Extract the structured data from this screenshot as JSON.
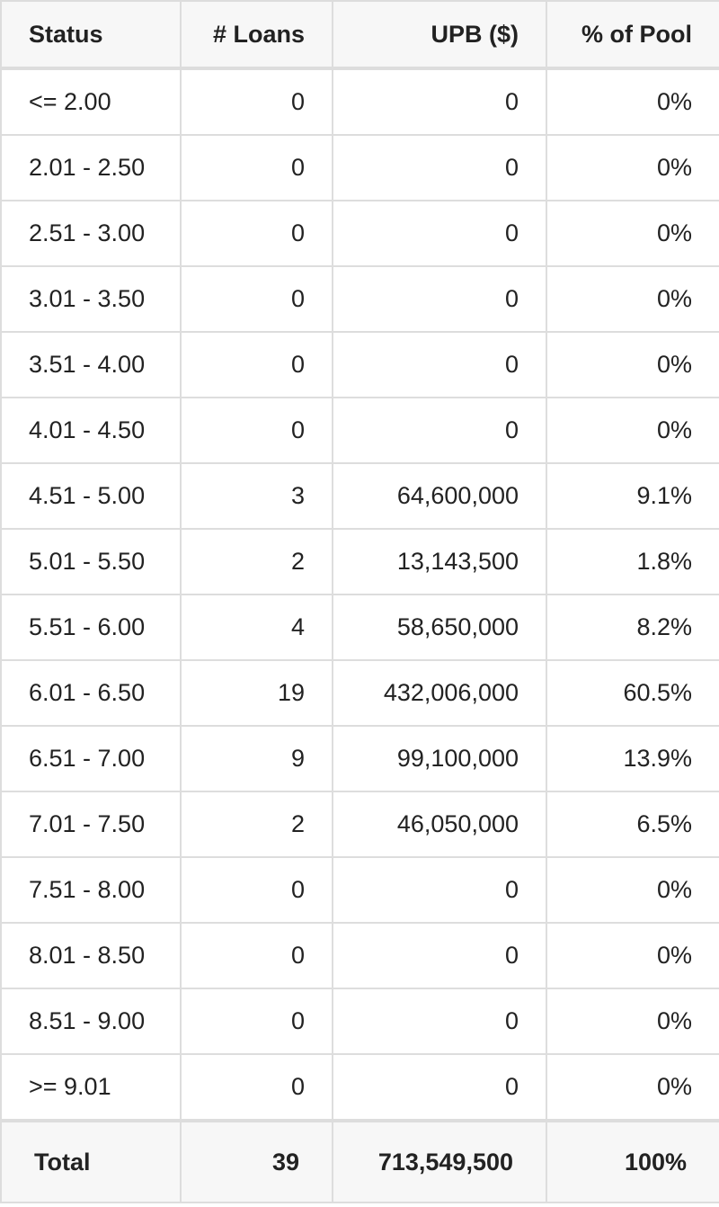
{
  "table": {
    "headers": [
      "Status",
      "# Loans",
      "UPB ($)",
      "% of Pool"
    ],
    "rows": [
      [
        "<= 2.00",
        "0",
        "0",
        "0%"
      ],
      [
        "2.01 - 2.50",
        "0",
        "0",
        "0%"
      ],
      [
        "2.51 - 3.00",
        "0",
        "0",
        "0%"
      ],
      [
        "3.01 - 3.50",
        "0",
        "0",
        "0%"
      ],
      [
        "3.51 - 4.00",
        "0",
        "0",
        "0%"
      ],
      [
        "4.01 - 4.50",
        "0",
        "0",
        "0%"
      ],
      [
        "4.51 - 5.00",
        "3",
        "64,600,000",
        "9.1%"
      ],
      [
        "5.01 - 5.50",
        "2",
        "13,143,500",
        "1.8%"
      ],
      [
        "5.51 - 6.00",
        "4",
        "58,650,000",
        "8.2%"
      ],
      [
        "6.01 - 6.50",
        "19",
        "432,006,000",
        "60.5%"
      ],
      [
        "6.51 - 7.00",
        "9",
        "99,100,000",
        "13.9%"
      ],
      [
        "7.01 - 7.50",
        "2",
        "46,050,000",
        "6.5%"
      ],
      [
        "7.51 - 8.00",
        "0",
        "0",
        "0%"
      ],
      [
        "8.01 - 8.50",
        "0",
        "0",
        "0%"
      ],
      [
        "8.51 - 9.00",
        "0",
        "0",
        "0%"
      ],
      [
        ">= 9.01",
        "0",
        "0",
        "0%"
      ]
    ],
    "total": [
      "Total",
      "39",
      "713,549,500",
      "100%"
    ]
  }
}
